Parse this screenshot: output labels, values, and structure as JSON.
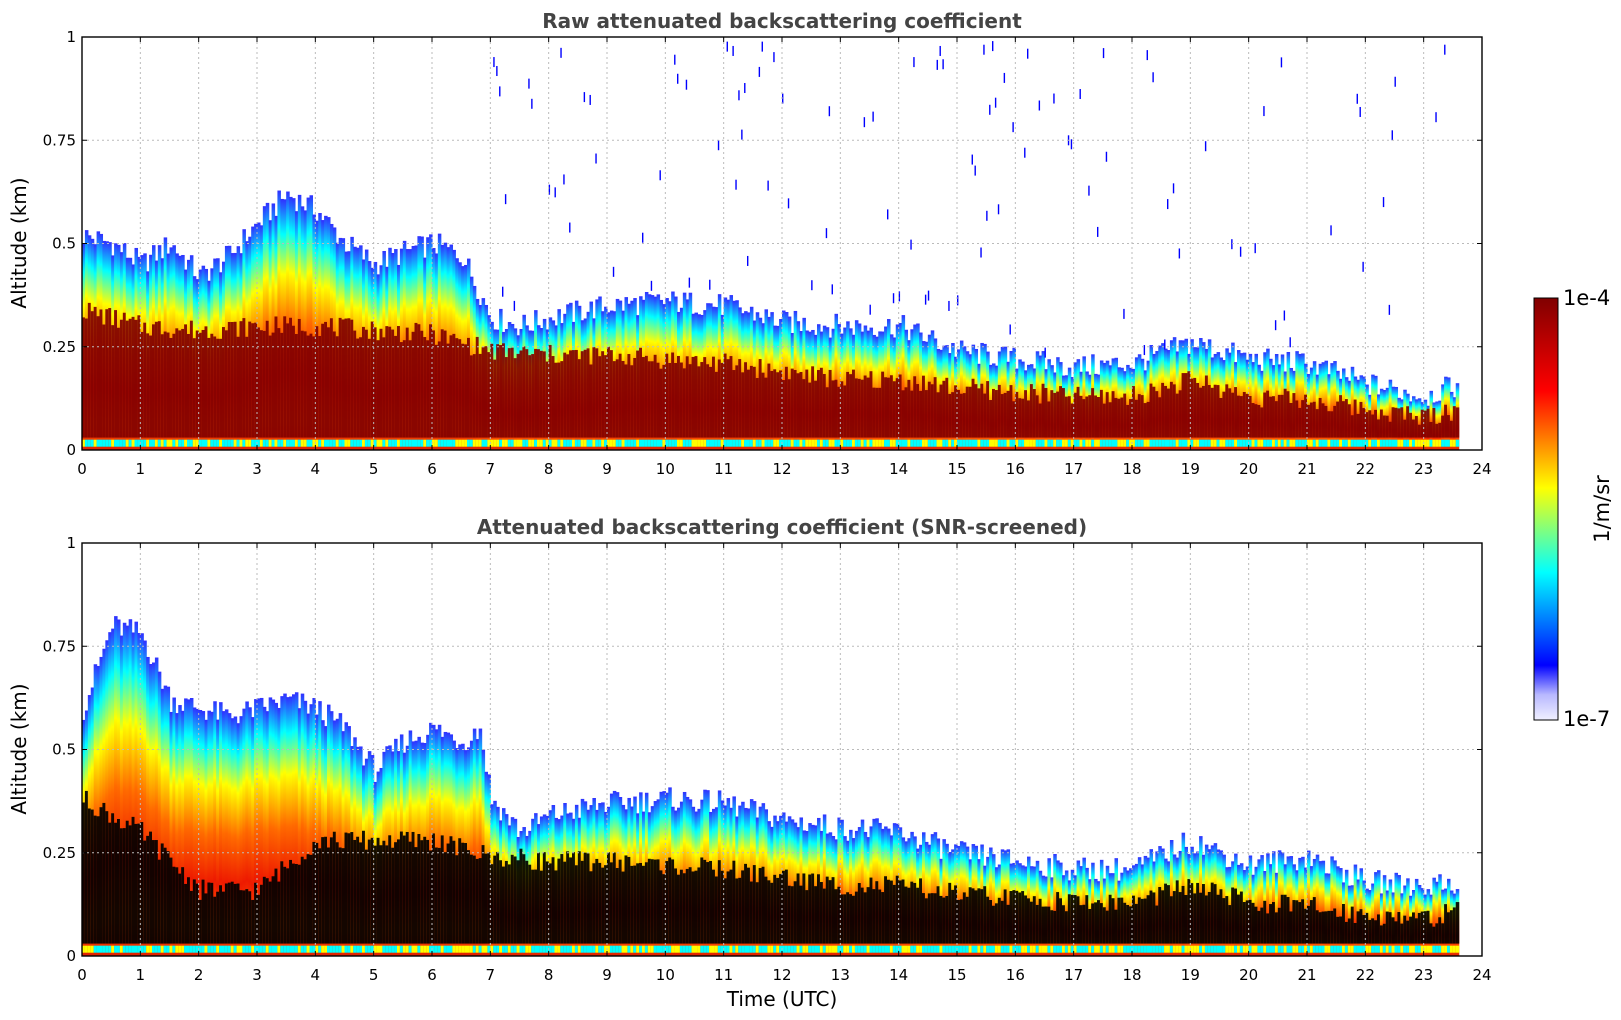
{
  "colors": {
    "colormap": [
      "#f0f0ff",
      "#0000ff",
      "#00ffff",
      "#ffff00",
      "#ff0000",
      "#800000"
    ],
    "screened_core": "#000000",
    "grid": "#bbbbbb"
  },
  "chart_data": [
    {
      "type": "heatmap",
      "title": "Raw attenuated backscattering coefficient",
      "xlabel": "",
      "ylabel": "Altitude (km)",
      "xlim": [
        0,
        24
      ],
      "ylim": [
        0,
        1
      ],
      "xticks": [
        "0",
        "1",
        "2",
        "3",
        "4",
        "5",
        "6",
        "7",
        "8",
        "9",
        "10",
        "11",
        "12",
        "13",
        "14",
        "15",
        "16",
        "17",
        "18",
        "19",
        "20",
        "21",
        "22",
        "23",
        "24"
      ],
      "yticks": [
        "0",
        "0.25",
        "0.5",
        "0.75",
        "1"
      ],
      "grid": true,
      "data_end_time": 23.6,
      "aerosol_layer_top_km": [
        [
          0,
          0.52
        ],
        [
          0.5,
          0.5
        ],
        [
          1,
          0.45
        ],
        [
          1.5,
          0.5
        ],
        [
          2,
          0.42
        ],
        [
          2.5,
          0.47
        ],
        [
          3,
          0.55
        ],
        [
          3.5,
          0.62
        ],
        [
          4,
          0.58
        ],
        [
          4.5,
          0.5
        ],
        [
          5,
          0.45
        ],
        [
          5.5,
          0.48
        ],
        [
          6,
          0.5
        ],
        [
          6.5,
          0.47
        ],
        [
          7,
          0.32
        ],
        [
          7.5,
          0.3
        ],
        [
          8,
          0.32
        ],
        [
          9,
          0.35
        ],
        [
          10,
          0.36
        ],
        [
          11,
          0.35
        ],
        [
          12,
          0.31
        ],
        [
          13,
          0.3
        ],
        [
          14,
          0.3
        ],
        [
          15,
          0.24
        ],
        [
          16,
          0.22
        ],
        [
          17,
          0.2
        ],
        [
          18,
          0.21
        ],
        [
          19,
          0.26
        ],
        [
          20,
          0.22
        ],
        [
          21,
          0.21
        ],
        [
          22,
          0.16
        ],
        [
          23,
          0.13
        ],
        [
          23.6,
          0.16
        ]
      ],
      "saturated_core_top_km": [
        [
          0,
          0.34
        ],
        [
          1,
          0.3
        ],
        [
          2,
          0.29
        ],
        [
          3,
          0.3
        ],
        [
          4,
          0.3
        ],
        [
          5,
          0.29
        ],
        [
          6,
          0.28
        ],
        [
          7,
          0.24
        ],
        [
          8,
          0.23
        ],
        [
          9,
          0.23
        ],
        [
          10,
          0.22
        ],
        [
          11,
          0.21
        ],
        [
          12,
          0.19
        ],
        [
          13,
          0.17
        ],
        [
          14,
          0.17
        ],
        [
          15,
          0.15
        ],
        [
          16,
          0.14
        ],
        [
          17,
          0.13
        ],
        [
          18,
          0.13
        ],
        [
          19,
          0.17
        ],
        [
          20,
          0.13
        ],
        [
          21,
          0.12
        ],
        [
          22,
          0.1
        ],
        [
          23,
          0.08
        ],
        [
          23.6,
          0.1
        ]
      ]
    },
    {
      "type": "heatmap",
      "title": "Attenuated backscattering coefficient (SNR-screened)",
      "xlabel": "Time (UTC)",
      "ylabel": "Altitude (km)",
      "xlim": [
        0,
        24
      ],
      "ylim": [
        0,
        1
      ],
      "xticks": [
        "0",
        "1",
        "2",
        "3",
        "4",
        "5",
        "6",
        "7",
        "8",
        "9",
        "10",
        "11",
        "12",
        "13",
        "14",
        "15",
        "16",
        "17",
        "18",
        "19",
        "20",
        "21",
        "22",
        "23",
        "24"
      ],
      "yticks": [
        "0",
        "0.25",
        "0.5",
        "0.75",
        "1"
      ],
      "grid": true,
      "data_end_time": 23.6,
      "aerosol_layer_top_km": [
        [
          0,
          0.6
        ],
        [
          0.5,
          0.8
        ],
        [
          1,
          0.78
        ],
        [
          1.5,
          0.62
        ],
        [
          2,
          0.6
        ],
        [
          2.5,
          0.58
        ],
        [
          3,
          0.6
        ],
        [
          3.5,
          0.62
        ],
        [
          4,
          0.6
        ],
        [
          4.5,
          0.55
        ],
        [
          5,
          0.45
        ],
        [
          5.5,
          0.52
        ],
        [
          6,
          0.55
        ],
        [
          6.5,
          0.52
        ],
        [
          6.8,
          0.55
        ],
        [
          7,
          0.38
        ],
        [
          7.5,
          0.3
        ],
        [
          8,
          0.34
        ],
        [
          9,
          0.37
        ],
        [
          10,
          0.38
        ],
        [
          11,
          0.37
        ],
        [
          12,
          0.33
        ],
        [
          13,
          0.31
        ],
        [
          14,
          0.3
        ],
        [
          15,
          0.25
        ],
        [
          16,
          0.23
        ],
        [
          17,
          0.21
        ],
        [
          18,
          0.21
        ],
        [
          19,
          0.28
        ],
        [
          20,
          0.22
        ],
        [
          21,
          0.24
        ],
        [
          22,
          0.18
        ],
        [
          23,
          0.17
        ],
        [
          23.6,
          0.18
        ]
      ],
      "saturated_core_top_km": [
        [
          0,
          0.38
        ],
        [
          1,
          0.3
        ],
        [
          2,
          0.16
        ],
        [
          3,
          0.16
        ],
        [
          4,
          0.28
        ],
        [
          5,
          0.28
        ],
        [
          6,
          0.28
        ],
        [
          7,
          0.24
        ],
        [
          8,
          0.23
        ],
        [
          9,
          0.23
        ],
        [
          10,
          0.22
        ],
        [
          11,
          0.21
        ],
        [
          12,
          0.19
        ],
        [
          13,
          0.17
        ],
        [
          14,
          0.17
        ],
        [
          15,
          0.15
        ],
        [
          16,
          0.14
        ],
        [
          17,
          0.13
        ],
        [
          18,
          0.13
        ],
        [
          19,
          0.17
        ],
        [
          20,
          0.13
        ],
        [
          21,
          0.12
        ],
        [
          22,
          0.1
        ],
        [
          23,
          0.09
        ],
        [
          23.6,
          0.11
        ]
      ]
    }
  ],
  "colorbar": {
    "label": "1/m/sr",
    "max_label": "1e-4",
    "min_label": "1e-7",
    "scale": "log"
  }
}
